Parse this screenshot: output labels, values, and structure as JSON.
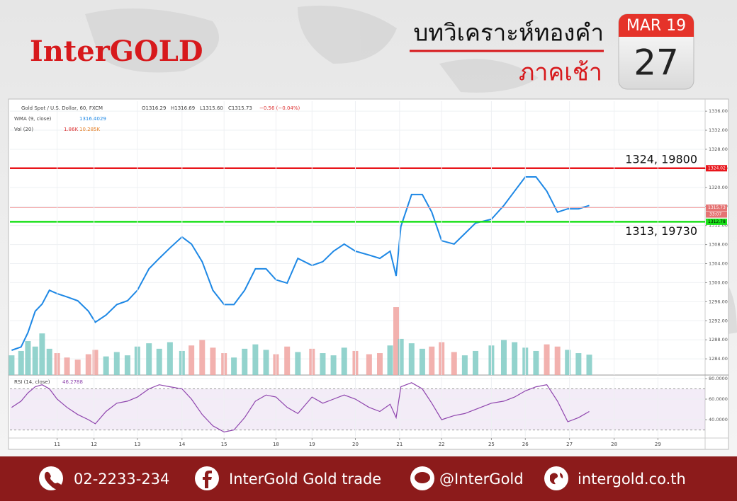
{
  "header": {
    "brand": "InterGOLD",
    "title": "บทวิเคราะห์ทองคำ",
    "session": "ภาคเช้า",
    "month": "MAR 19",
    "day": "27"
  },
  "footer": {
    "phone": "02-2233-234",
    "facebook": "InterGold Gold trade",
    "line": "@InterGold",
    "website": "intergold.co.th"
  },
  "chart_data": [
    {
      "type": "line",
      "symbol": "Gold Spot / U.S. Dollar, 60, FXCM",
      "quote": [
        "O1316.29",
        "H1316.69",
        "L1315.60",
        "C1315.73",
        "−0.56 (−0.04%)"
      ],
      "x": [
        -1.06,
        -0.84,
        -0.68,
        -0.51,
        -0.35,
        -0.18,
        0,
        0.23,
        0.48,
        0.73,
        0.89,
        1.14,
        1.39,
        1.64,
        1.87,
        2.14,
        2.38,
        2.63,
        2.91,
        3.13,
        3.38,
        3.63,
        3.89,
        4.12,
        4.37,
        4.62,
        4.87,
        5.1,
        5.36,
        5.61,
        5.94,
        6.19,
        6.44,
        6.69,
        6.95,
        7.27,
        7.52,
        7.76,
        7.9,
        8.01,
        8.26,
        8.51,
        8.73,
        8.96,
        9.25,
        9.5,
        9.75,
        10.12,
        10.41,
        10.66,
        10.91,
        11.16,
        11.41,
        11.66,
        11.9,
        12.15,
        12.4
      ],
      "series": [
        {
          "name": "WMA (9, close)",
          "color": "#1e88e5",
          "legend_value": 1316.4029,
          "values": [
            1285.8,
            1286.5,
            1289.5,
            1294,
            1295.5,
            1298.4,
            1297.7,
            1297,
            1296.2,
            1294,
            1291.7,
            1293.2,
            1295.4,
            1296.2,
            1298.4,
            1302.9,
            1305.1,
            1307.3,
            1309.6,
            1308.1,
            1304.4,
            1298.4,
            1295.4,
            1295.4,
            1298.4,
            1302.9,
            1302.9,
            1300.6,
            1299.9,
            1305.1,
            1303.6,
            1304.4,
            1306.6,
            1308.1,
            1306.6,
            1305.8,
            1305.1,
            1306.6,
            1301.4,
            1311.8,
            1318.5,
            1318.5,
            1314.8,
            1308.8,
            1308.1,
            1310.3,
            1312.5,
            1313.3,
            1316.2,
            1319.2,
            1322.2,
            1322.2,
            1319.2,
            1314.8,
            1315.5,
            1315.5,
            1316.2
          ]
        },
        {
          "name": "Vol (20)",
          "type": "bar",
          "axis": "y2",
          "colors": [
            "#80cbc4",
            "#f0a3a0"
          ],
          "legend_values": [
            {
              "value": 1.86,
              "label": "1.86K"
            },
            {
              "value": 10.285,
              "label": "10.285K"
            }
          ],
          "values": [
            1.8,
            2.2,
            3.1,
            2.6,
            3.8,
            2.4,
            2.0,
            1.6,
            1.4,
            1.9,
            2.3,
            1.7,
            2.1,
            1.8,
            2.6,
            2.9,
            2.4,
            3.0,
            2.2,
            2.7,
            3.2,
            2.5,
            2.0,
            1.6,
            2.4,
            2.8,
            2.3,
            1.9,
            2.6,
            2.1,
            2.4,
            2.0,
            1.8,
            2.5,
            2.2,
            1.9,
            2.0,
            2.7,
            6.2,
            3.3,
            2.9,
            2.4,
            2.6,
            3.0,
            2.1,
            1.8,
            2.2,
            2.7,
            3.2,
            3.0,
            2.5,
            2.2,
            2.8,
            2.6,
            2.3,
            2.0,
            1.86
          ]
        }
      ],
      "xlim": [
        -1.1,
        15.1
      ],
      "ylim": [
        1280.6,
        1338.1
      ],
      "y2lim": [
        0,
        25
      ],
      "yticks": [
        {
          "value": 1284,
          "label": "1284.00"
        },
        {
          "value": 1288,
          "label": "1288.00"
        },
        {
          "value": 1292,
          "label": "1292.00"
        },
        {
          "value": 1296,
          "label": "1296.00"
        },
        {
          "value": 1300,
          "label": "1300.00"
        },
        {
          "value": 1304,
          "label": "1304.00"
        },
        {
          "value": 1308,
          "label": "1308.00"
        },
        {
          "value": 1312,
          "label": "1312.00"
        },
        {
          "value": 1316,
          "label": "1316.00"
        },
        {
          "value": 1320,
          "label": "1320.00"
        },
        {
          "value": 1324,
          "label": "1324.00"
        },
        {
          "value": 1328,
          "label": "1328.00"
        },
        {
          "value": 1332,
          "label": "1332.00"
        },
        {
          "value": 1336,
          "label": "1336.00"
        }
      ],
      "hlines": [
        {
          "value": 1324.02,
          "color": "#e8151b",
          "note": "1324, 19800"
        },
        {
          "value": 1312.78,
          "color": "#19e019",
          "note": "1313, 19730"
        },
        {
          "value": 1315.73,
          "color": "#f2a0a0",
          "tag": "33:07"
        }
      ],
      "grid": true
    },
    {
      "type": "line",
      "x": [
        -1.06,
        -0.84,
        -0.68,
        -0.51,
        -0.35,
        -0.18,
        0,
        0.23,
        0.48,
        0.73,
        0.89,
        1.14,
        1.39,
        1.64,
        1.87,
        2.14,
        2.38,
        2.63,
        2.91,
        3.13,
        3.38,
        3.63,
        3.89,
        4.12,
        4.37,
        4.62,
        4.87,
        5.1,
        5.36,
        5.61,
        5.94,
        6.19,
        6.44,
        6.69,
        6.95,
        7.27,
        7.52,
        7.76,
        7.9,
        8.01,
        8.26,
        8.51,
        8.73,
        8.96,
        9.25,
        9.5,
        9.75,
        10.12,
        10.41,
        10.66,
        10.91,
        11.16,
        11.41,
        11.66,
        11.9,
        12.15,
        12.4
      ],
      "series": [
        {
          "name": "RSI (14, close)",
          "color": "#8e44ad",
          "legend_value": 46.2788,
          "values": [
            52,
            58,
            66,
            72,
            74,
            70,
            60,
            52,
            45,
            40,
            36,
            48,
            56,
            58,
            62,
            70,
            74,
            72,
            70,
            60,
            45,
            34,
            28,
            30,
            42,
            58,
            64,
            62,
            52,
            46,
            62,
            56,
            60,
            64,
            60,
            52,
            48,
            55,
            42,
            72,
            76,
            70,
            56,
            40,
            44,
            46,
            50,
            56,
            58,
            62,
            68,
            72,
            74,
            58,
            38,
            42,
            48
          ]
        }
      ],
      "xlim": [
        -1.1,
        15.1
      ],
      "ylim": [
        23.5,
        81.4
      ],
      "yticks": [
        {
          "value": 80,
          "label": "80.0000"
        },
        {
          "value": 60,
          "label": "60.0000"
        },
        {
          "value": 40,
          "label": "40.0000"
        }
      ],
      "band": [
        30,
        70
      ],
      "xticks": [
        {
          "value": 0,
          "label": "11"
        },
        {
          "value": 0.86,
          "label": "12"
        },
        {
          "value": 1.87,
          "label": "13"
        },
        {
          "value": 2.91,
          "label": "14"
        },
        {
          "value": 3.89,
          "label": "15"
        },
        {
          "value": 5.1,
          "label": "18"
        },
        {
          "value": 5.94,
          "label": "19"
        },
        {
          "value": 6.95,
          "label": "20"
        },
        {
          "value": 7.98,
          "label": "21"
        },
        {
          "value": 8.96,
          "label": "22"
        },
        {
          "value": 10.12,
          "label": "25"
        },
        {
          "value": 10.91,
          "label": "26"
        },
        {
          "value": 11.94,
          "label": "27"
        },
        {
          "value": 12.98,
          "label": "28"
        },
        {
          "value": 14.0,
          "label": "29"
        }
      ],
      "grid": true
    }
  ]
}
